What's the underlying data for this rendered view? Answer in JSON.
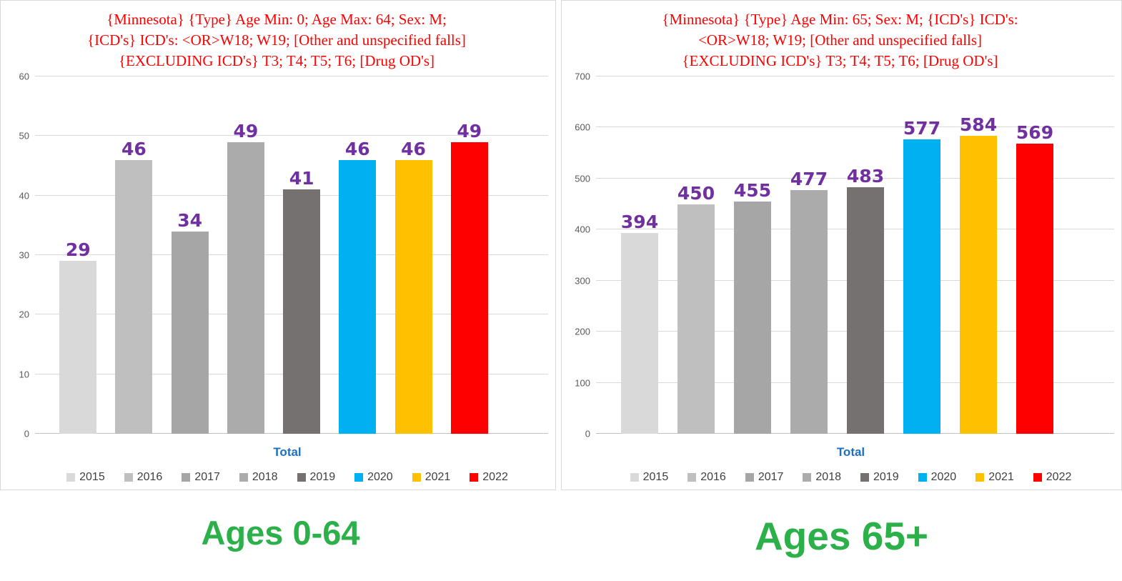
{
  "colors": {
    "title_red": "#FF0000",
    "data_label_purple": "#7030A0",
    "axis_tick_gray": "#595959",
    "gridline_gray": "#D9D9D9",
    "xlabel_blue": "#1F6FC1",
    "legend_text_gray": "#3F3F3F",
    "footer_green": "#2BB04A",
    "panel_border": "#D9D9D9"
  },
  "chart_data": [
    {
      "type": "bar",
      "title": "{Minnesota} {Type} Age Min: 0; Age Max: 64; Sex: M;\n{ICD's} ICD's: <OR>W18; W19;  [Other and unspecified falls]\n{EXCLUDING ICD's} T3; T4; T5; T6; [Drug OD's]",
      "title_color": "#FF0000",
      "categories": [
        "2015",
        "2016",
        "2017",
        "2018",
        "2019",
        "2020",
        "2021",
        "2022"
      ],
      "values": [
        29,
        46,
        34,
        49,
        41,
        46,
        46,
        49
      ],
      "bar_colors": [
        "#D9D9D9",
        "#BFBFBF",
        "#A6A6A6",
        "#ABABAB",
        "#767171",
        "#00B0F0",
        "#FFC000",
        "#FF0000"
      ],
      "data_label_color": "#7030A0",
      "xlabel": "Total",
      "xlabel_color": "#1F6FC1",
      "ylim": [
        0,
        60
      ],
      "yticks": [
        0,
        10,
        20,
        30,
        40,
        50,
        60
      ],
      "grid": true,
      "legend_position": "bottom"
    },
    {
      "type": "bar",
      "title": "{Minnesota} {Type} Age Min: 65; Sex: M; {ICD's} ICD's:\n<OR>W18; W19;  [Other and unspecified falls]\n{EXCLUDING ICD's} T3; T4; T5; T6; [Drug OD's]",
      "title_color": "#FF0000",
      "categories": [
        "2015",
        "2016",
        "2017",
        "2018",
        "2019",
        "2020",
        "2021",
        "2022"
      ],
      "values": [
        394,
        450,
        455,
        477,
        483,
        577,
        584,
        569
      ],
      "bar_colors": [
        "#D9D9D9",
        "#BFBFBF",
        "#A6A6A6",
        "#ABABAB",
        "#767171",
        "#00B0F0",
        "#FFC000",
        "#FF0000"
      ],
      "data_label_color": "#7030A0",
      "xlabel": "Total",
      "xlabel_color": "#1F6FC1",
      "ylim": [
        0,
        700
      ],
      "yticks": [
        0,
        100,
        200,
        300,
        400,
        500,
        600,
        700
      ],
      "grid": true,
      "legend_position": "bottom"
    }
  ],
  "footers": [
    {
      "text": "Ages 0-64",
      "color": "#2BB04A"
    },
    {
      "text": "Ages 65+",
      "color": "#2BB04A"
    }
  ]
}
